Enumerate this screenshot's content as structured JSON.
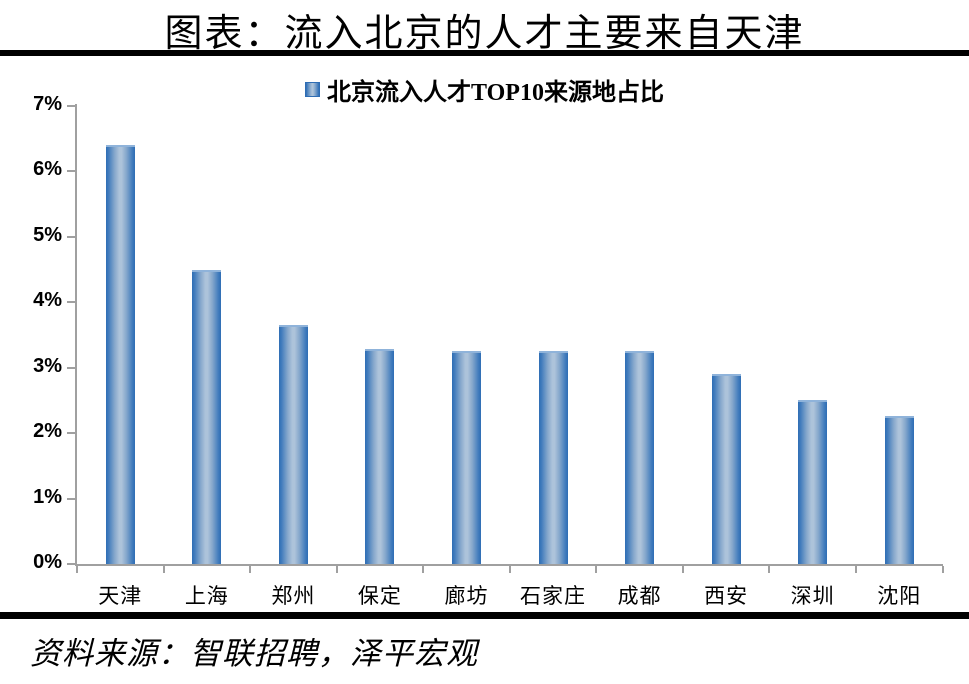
{
  "header": {
    "title": "图表：流入北京的人才主要来自天津"
  },
  "legend": {
    "label": "北京流入人才TOP10来源地占比"
  },
  "footer": {
    "source_note": "资料来源：智联招聘，泽平宏观"
  },
  "colors": {
    "bar_edge": "#2e6db4",
    "bar_center": "#adc3da",
    "axis": "#a0a0a0",
    "divider": "#000000",
    "text": "#000000"
  },
  "chart_data": {
    "type": "bar",
    "title": "北京流入人才TOP10来源地占比",
    "categories": [
      "天津",
      "上海",
      "郑州",
      "保定",
      "廊坊",
      "石家庄",
      "成都",
      "西安",
      "深圳",
      "沈阳"
    ],
    "values": [
      6.4,
      4.5,
      3.65,
      3.29,
      3.25,
      3.25,
      3.25,
      2.91,
      2.51,
      2.26
    ],
    "unit": "%",
    "xlabel": "",
    "ylabel": "",
    "ylim": [
      0,
      7
    ],
    "ytick_step": 1,
    "ytick_labels": [
      "0%",
      "1%",
      "2%",
      "3%",
      "4%",
      "5%",
      "6%",
      "7%"
    ],
    "grid": false,
    "legend_position": "top-center"
  }
}
